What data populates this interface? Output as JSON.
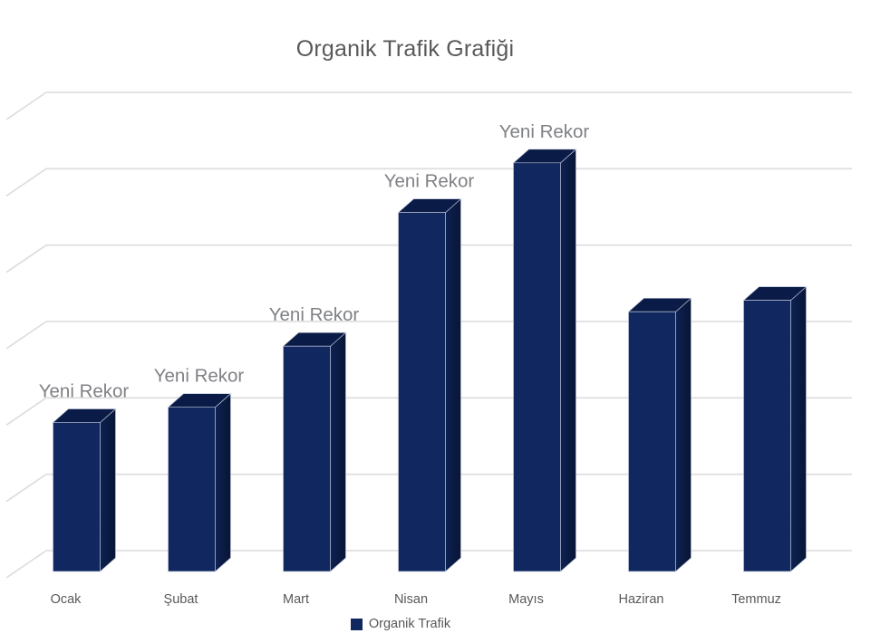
{
  "chart_data": {
    "type": "bar",
    "variant": "3d-column",
    "title": "Organik Trafik Grafiği",
    "categories": [
      "Ocak",
      "Şubat",
      "Mart",
      "Nisan",
      "Mayıs",
      "Haziran",
      "Temmuz"
    ],
    "series": [
      {
        "name": "Organik Trafik",
        "values": [
          195,
          215,
          295,
          470,
          535,
          340,
          355
        ],
        "data_labels": [
          "Yeni Rekor",
          "Yeni Rekor",
          "Yeni Rekor",
          "Yeni Rekor",
          "Yeni Rekor",
          null,
          null
        ]
      }
    ],
    "xlabel": "",
    "ylabel": "",
    "ylim": [
      0,
      600
    ],
    "y_tick_labels_visible": false,
    "gridlines": "7 horizontal gridlines with 3D perspective bend at left, no vertical axis line",
    "legend_position": "bottom-center",
    "value_note": "Y axis has no tick labels; values estimated in arbitrary units where one gridline division = 100",
    "colors": {
      "bar_front": "#112760",
      "bar_top": "#0A1B47",
      "bar_side_near": "#0D2152",
      "bar_side_far": "#081536",
      "bar_edge": "#C5CDDD",
      "gridline": "#DCDCDC",
      "title_text": "#595959",
      "axis_text": "#595959",
      "data_label_text": "#7F8185"
    },
    "legend": {
      "label": "Organik Trafik"
    }
  }
}
